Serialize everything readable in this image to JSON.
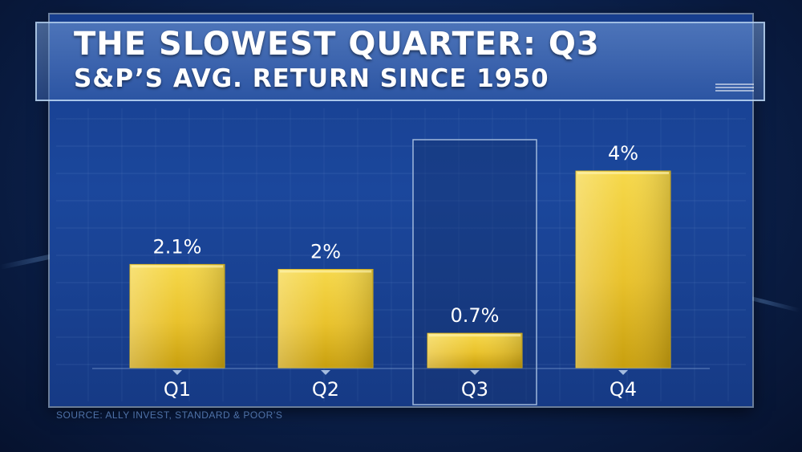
{
  "header": {
    "title": "THE SLOWEST QUARTER: Q3",
    "subtitle": "S&P’S AVG. RETURN SINCE 1950"
  },
  "source": "SOURCE: ALLY INVEST, STANDARD & POOR’S",
  "colors": {
    "bar_top": "#f3cf3a",
    "bar_bottom": "#c9a10e",
    "highlight_box": "#9fb8dc",
    "label": "#ffffff"
  },
  "chart_data": {
    "type": "bar",
    "title": "THE SLOWEST QUARTER: Q3",
    "subtitle": "S&P’S AVG. RETURN SINCE 1950",
    "categories": [
      "Q1",
      "Q2",
      "Q3",
      "Q4"
    ],
    "values": [
      2.1,
      2.0,
      0.7,
      4.0
    ],
    "value_labels": [
      "2.1%",
      "2%",
      "0.7%",
      "4%"
    ],
    "highlighted_category": "Q3",
    "xlabel": "",
    "ylabel": "",
    "ylim": [
      0,
      4.2
    ],
    "grid": true,
    "legend": "none"
  }
}
